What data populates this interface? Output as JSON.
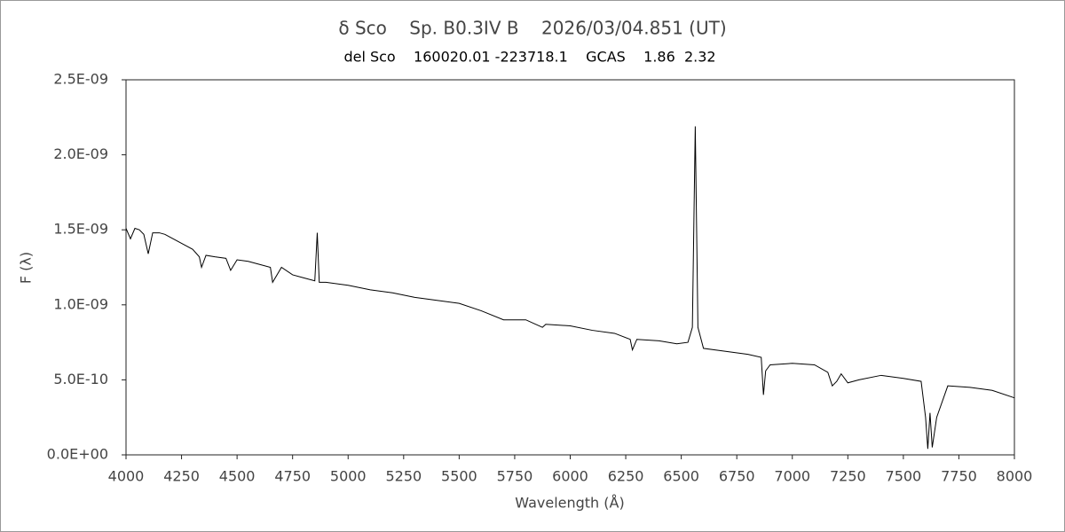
{
  "chart_data": {
    "type": "line",
    "title": "δ Sco    Sp. B0.3IV B    2026/03/04.851 (UT)",
    "subtitle": "del Sco    160020.01 -223718.1    GCAS    1.86  2.32",
    "xlabel": "Wavelength (Å)",
    "ylabel": "F (λ)",
    "color": "#000000",
    "x": [
      4000,
      4020,
      4040,
      4060,
      4080,
      4100,
      4120,
      4150,
      4175,
      4200,
      4250,
      4300,
      4330,
      4340,
      4360,
      4400,
      4450,
      4471,
      4500,
      4550,
      4600,
      4650,
      4660,
      4700,
      4750,
      4800,
      4850,
      4861,
      4870,
      4900,
      5000,
      5100,
      5200,
      5300,
      5400,
      5500,
      5600,
      5700,
      5800,
      5875,
      5890,
      6000,
      6100,
      6200,
      6270,
      6280,
      6300,
      6400,
      6480,
      6530,
      6550,
      6563,
      6575,
      6600,
      6700,
      6800,
      6860,
      6870,
      6880,
      6900,
      7000,
      7100,
      7160,
      7180,
      7200,
      7220,
      7250,
      7300,
      7400,
      7500,
      7580,
      7600,
      7610,
      7620,
      7630,
      7650,
      7700,
      7800,
      7900,
      8000
    ],
    "values": [
      1.51e-09,
      1.44e-09,
      1.51e-09,
      1.5e-09,
      1.47e-09,
      1.34e-09,
      1.48e-09,
      1.48e-09,
      1.47e-09,
      1.45e-09,
      1.41e-09,
      1.37e-09,
      1.32e-09,
      1.25e-09,
      1.33e-09,
      1.32e-09,
      1.31e-09,
      1.23e-09,
      1.3e-09,
      1.29e-09,
      1.27e-09,
      1.25e-09,
      1.15e-09,
      1.25e-09,
      1.2e-09,
      1.18e-09,
      1.16e-09,
      1.48e-09,
      1.15e-09,
      1.15e-09,
      1.13e-09,
      1.1e-09,
      1.08e-09,
      1.05e-09,
      1.03e-09,
      1.01e-09,
      9.6e-10,
      9e-10,
      9e-10,
      8.5e-10,
      8.7e-10,
      8.6e-10,
      8.3e-10,
      8.1e-10,
      7.7e-10,
      7e-10,
      7.7e-10,
      7.6e-10,
      7.4e-10,
      7.5e-10,
      8.5e-10,
      2.19e-09,
      8.5e-10,
      7.1e-10,
      6.9e-10,
      6.7e-10,
      6.5e-10,
      4e-10,
      5.6e-10,
      6e-10,
      6.1e-10,
      6e-10,
      5.5e-10,
      4.6e-10,
      4.9e-10,
      5.4e-10,
      4.8e-10,
      5e-10,
      5.3e-10,
      5.1e-10,
      4.9e-10,
      2.5e-10,
      4e-11,
      2.8e-10,
      5e-11,
      2.5e-10,
      4.6e-10,
      4.5e-10,
      4.3e-10,
      3.8e-10
    ],
    "xlim": [
      4000,
      8000
    ],
    "xticks": [
      4000,
      4250,
      4500,
      4750,
      5000,
      5250,
      5500,
      5750,
      6000,
      6250,
      6500,
      6750,
      7000,
      7250,
      7500,
      7750,
      8000
    ],
    "ylim": [
      0,
      2.5e-09
    ],
    "yticks": [
      {
        "value": 0,
        "label": "0.0E+00"
      },
      {
        "value": 5e-10,
        "label": "5.0E-10"
      },
      {
        "value": 1e-09,
        "label": "1.0E-09"
      },
      {
        "value": 1.5e-09,
        "label": "1.5E-09"
      },
      {
        "value": 2e-09,
        "label": "2.0E-09"
      },
      {
        "value": 2.5e-09,
        "label": "2.5E-09"
      }
    ],
    "grid": false
  }
}
